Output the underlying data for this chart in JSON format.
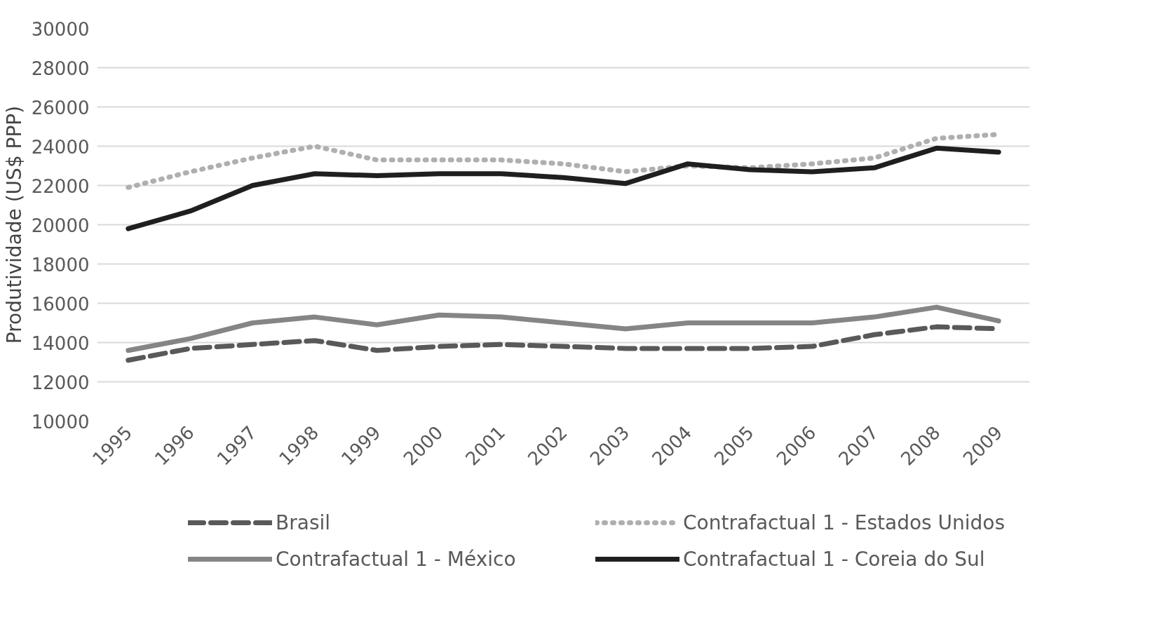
{
  "chart_data": {
    "type": "line",
    "ylabel": "Produtividade (US$ PPP)",
    "categories": [
      "1995",
      "1996",
      "1997",
      "1998",
      "1999",
      "2000",
      "2001",
      "2002",
      "2003",
      "2004",
      "2005",
      "2006",
      "2007",
      "2008",
      "2009"
    ],
    "series": [
      {
        "name": "Brasil",
        "color": "#595959",
        "line_style": "dashed",
        "values": [
          13100,
          13700,
          13900,
          14100,
          13600,
          13800,
          13900,
          13800,
          13700,
          13700,
          13700,
          13800,
          14400,
          14800,
          14700
        ]
      },
      {
        "name": "Contrafactual 1 - Estados Unidos",
        "color": "#afafaf",
        "line_style": "dotted",
        "values": [
          21900,
          22700,
          23400,
          24000,
          23300,
          23300,
          23300,
          23100,
          22700,
          23000,
          22900,
          23100,
          23400,
          24400,
          24600
        ]
      },
      {
        "name": "Contrafactual 1 - México",
        "color": "#858585",
        "line_style": "solid",
        "values": [
          13600,
          14200,
          15000,
          15300,
          14900,
          15400,
          15300,
          15000,
          14700,
          15000,
          15000,
          15000,
          15300,
          15800,
          15100
        ]
      },
      {
        "name": "Contrafactual 1 - Coreia do Sul",
        "color": "#1f1f1f",
        "line_style": "solid",
        "values": [
          19800,
          20700,
          22000,
          22600,
          22500,
          22600,
          22600,
          22400,
          22100,
          23100,
          22800,
          22700,
          22900,
          23900,
          23700
        ]
      }
    ],
    "ylim": [
      10000,
      30000
    ],
    "yticks": [
      10000,
      12000,
      14000,
      16000,
      18000,
      20000,
      22000,
      24000,
      26000,
      28000,
      30000
    ],
    "grid": "y",
    "legend": "bottom",
    "marker": "none"
  }
}
